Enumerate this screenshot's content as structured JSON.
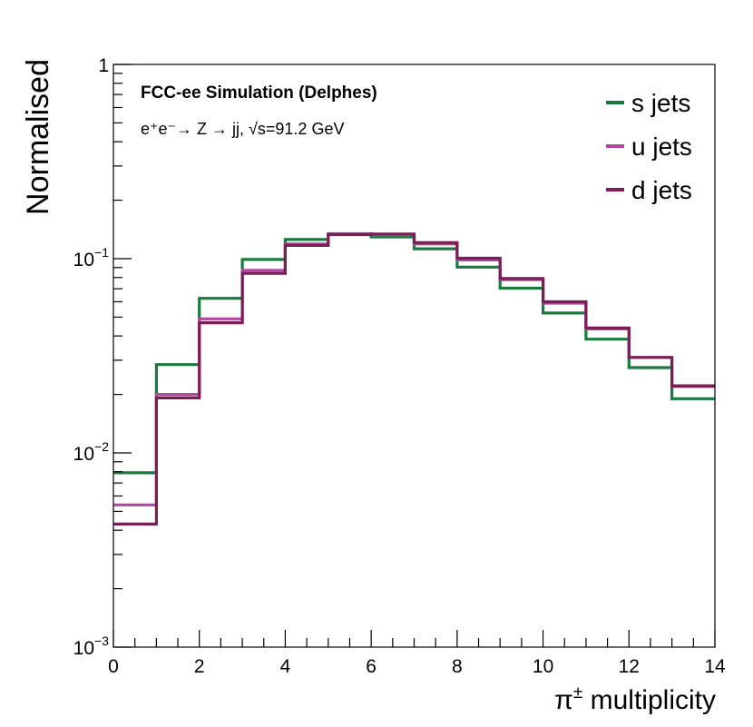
{
  "chart_data": {
    "type": "histogram-step",
    "title": "",
    "xlabel_symbol": "π",
    "xlabel_superscript": "±",
    "xlabel_text": " multiplicity",
    "ylabel": "Normalised",
    "xlim": [
      0,
      14
    ],
    "ylim": [
      0.001,
      1
    ],
    "yscale": "log",
    "x_ticks": [
      "0",
      "2",
      "4",
      "6",
      "8",
      "10",
      "12",
      "14"
    ],
    "y_ticks": [
      {
        "value": 1,
        "base": "1",
        "exp": ""
      },
      {
        "value": 0.1,
        "base": "10",
        "exp": "−1"
      },
      {
        "value": 0.01,
        "base": "10",
        "exp": "−2"
      },
      {
        "value": 0.001,
        "base": "10",
        "exp": "−3"
      }
    ],
    "bin_edges": [
      0,
      1,
      2,
      3,
      4,
      5,
      6,
      7,
      8,
      9,
      10,
      11,
      12,
      13,
      14
    ],
    "series": [
      {
        "name": "s jets",
        "color": "#1b7a3e",
        "values": [
          0.0079,
          0.0285,
          0.0625,
          0.099,
          0.1255,
          0.1345,
          0.1295,
          0.1125,
          0.0905,
          0.0705,
          0.0525,
          0.0385,
          0.0275,
          0.019
        ]
      },
      {
        "name": "u jets",
        "color": "#b0499f",
        "values": [
          0.0054,
          0.02,
          0.049,
          0.087,
          0.119,
          0.134,
          0.133,
          0.119,
          0.0985,
          0.078,
          0.059,
          0.0435,
          0.031,
          0.0222
        ]
      },
      {
        "name": "d jets",
        "color": "#7a1f55",
        "values": [
          0.0043,
          0.0192,
          0.0468,
          0.084,
          0.117,
          0.133,
          0.134,
          0.121,
          0.1005,
          0.079,
          0.06,
          0.044,
          0.031,
          0.022
        ]
      }
    ],
    "annotation_title": "FCC-ee Simulation (Delphes)",
    "annotation_process": "e⁺e⁻→ Z → jj, √s=91.2 GeV",
    "legend_position": "top-right"
  }
}
